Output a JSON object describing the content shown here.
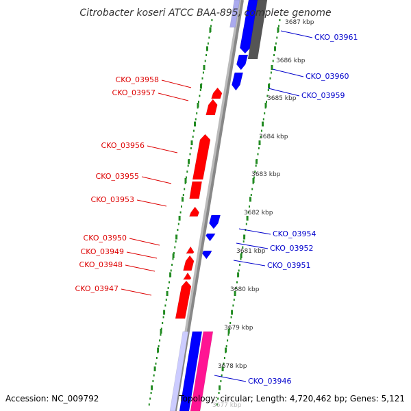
{
  "title": "Citrobacter koseri ATCC BAA-895, complete genome",
  "accession": "Accession: NC_009792",
  "summary": "Topology: circular; Length: 4,720,462 bp; Genes: 5,121",
  "colors": {
    "forward_label": "#0000cc",
    "reverse_label": "#dd0000",
    "forward_gene": "#0000ff",
    "reverse_gene": "#ff0000",
    "rna_gene": "#ff1493",
    "other_gene": "#555555",
    "backbone": "#888888",
    "ticks": "#228b22"
  },
  "kbp_ticks": [
    "3687 kbp",
    "3686 kbp",
    "3685 kbp",
    "3684 kbp",
    "3683 kbp",
    "3682 kbp",
    "3681 kbp",
    "3680 kbp",
    "3679 kbp",
    "3678 kbp",
    "3677 kbp"
  ],
  "forward_labels": [
    "CKO_03961",
    "CKO_03960",
    "CKO_03959",
    "CKO_03954",
    "CKO_03952",
    "CKO_03951",
    "CKO_03946"
  ],
  "reverse_labels": [
    "CKO_03958",
    "CKO_03957",
    "CKO_03956",
    "CKO_03955",
    "CKO_03953",
    "CKO_03950",
    "CKO_03949",
    "CKO_03948",
    "CKO_03947"
  ]
}
